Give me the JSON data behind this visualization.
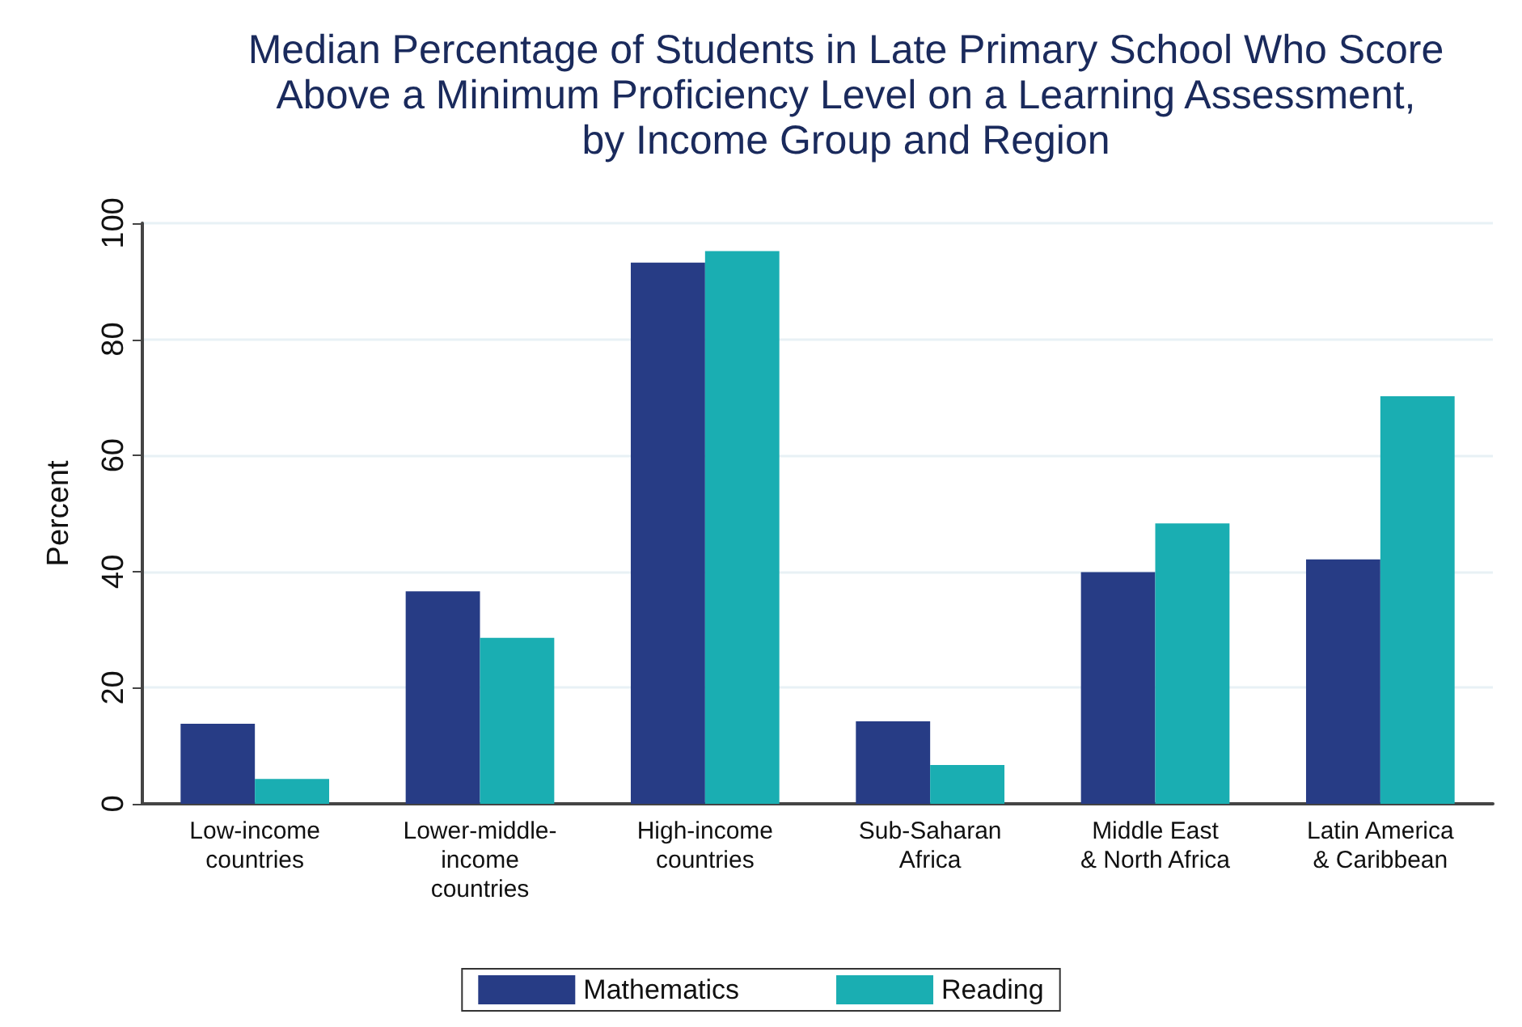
{
  "chart_data": {
    "type": "bar",
    "title": "Median Percentage of Students in Late Primary School Who Score\nAbove a Minimum Proficiency Level on a Learning Assessment,\nby Income Group and Region",
    "ylabel": "Percent",
    "categories": [
      "Low-income\ncountries",
      "Lower-middle-\nincome\ncountries",
      "High-income\ncountries",
      "Sub-Saharan\nAfrica",
      "Middle East\n& North Africa",
      "Latin America\n& Caribbean"
    ],
    "series": [
      {
        "name": "Mathematics",
        "color": "#273c85",
        "values": [
          13.8,
          36.6,
          93.2,
          14.2,
          39.9,
          42.1
        ]
      },
      {
        "name": "Reading",
        "color": "#1aaeb2",
        "values": [
          4.3,
          28.6,
          95.2,
          6.7,
          48.3,
          70.2
        ]
      }
    ],
    "ylim": [
      0,
      100
    ],
    "yticks": [
      0,
      20,
      40,
      60,
      80,
      100
    ],
    "grid": "y",
    "legend": "bottom"
  }
}
